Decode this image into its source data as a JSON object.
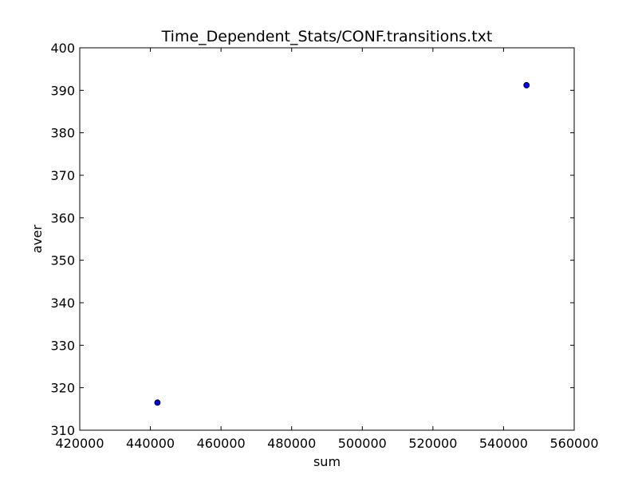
{
  "chart_data": {
    "type": "scatter",
    "title": "Time_Dependent_Stats/CONF.transitions.txt",
    "xlabel": "sum",
    "ylabel": "aver",
    "xlim": [
      420000,
      560000
    ],
    "ylim": [
      310,
      400
    ],
    "xticks": [
      420000,
      440000,
      460000,
      480000,
      500000,
      520000,
      540000,
      560000
    ],
    "yticks": [
      310,
      320,
      330,
      340,
      350,
      360,
      370,
      380,
      390,
      400
    ],
    "xtick_labels": [
      "420000",
      "440000",
      "460000",
      "480000",
      "500000",
      "520000",
      "540000",
      "560000"
    ],
    "ytick_labels": [
      "310",
      "320",
      "330",
      "340",
      "350",
      "360",
      "370",
      "380",
      "390",
      "400"
    ],
    "grid": false,
    "legend": "none",
    "series": [
      {
        "points": [
          {
            "x": 442000,
            "y": 316.5
          },
          {
            "x": 546500,
            "y": 391.2
          }
        ],
        "color": "#0000ff"
      }
    ]
  }
}
